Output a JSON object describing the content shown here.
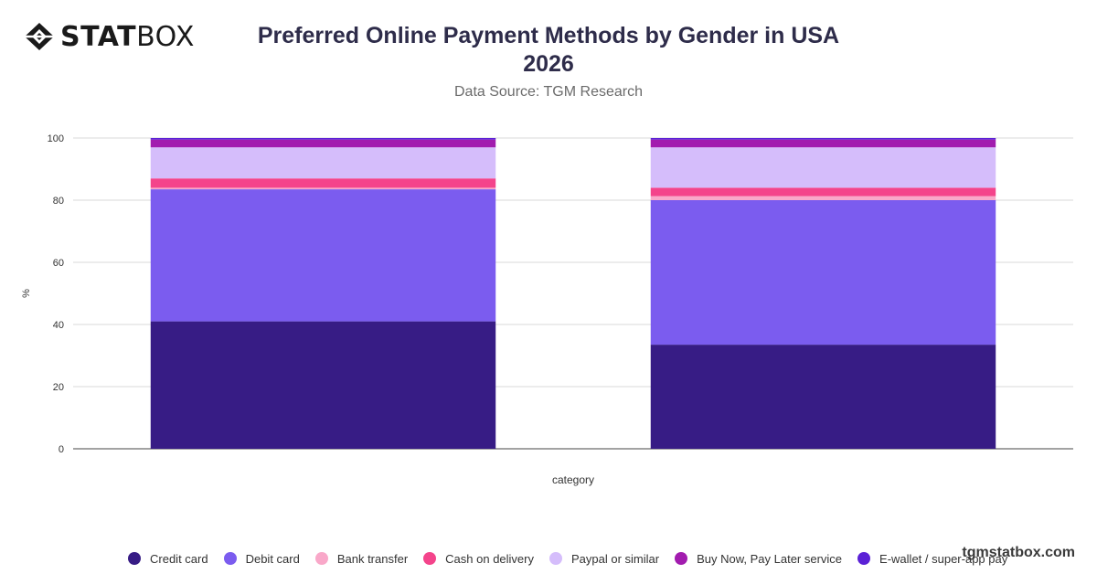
{
  "brand": {
    "logo_bold": "STAT",
    "logo_light": "BOX",
    "watermark": "tgmstatbox.com"
  },
  "header": {
    "title_line1": "Preferred Online Payment Methods by Gender in USA",
    "title_line2": "2026",
    "subtitle": "Data Source: TGM Research"
  },
  "chart_data": {
    "type": "bar",
    "stacked": true,
    "categories": [
      "",
      ""
    ],
    "xlabel": "category",
    "ylabel": "%",
    "ylim": [
      0,
      100
    ],
    "yticks": [
      0,
      20,
      40,
      60,
      80,
      100
    ],
    "grid": true,
    "legend_position": "bottom",
    "series": [
      {
        "name": "Credit card",
        "color": "#371c85",
        "values": [
          41,
          33.5
        ]
      },
      {
        "name": "Debit card",
        "color": "#7b5cef",
        "values": [
          42.5,
          46.5
        ]
      },
      {
        "name": "Bank transfer",
        "color": "#f9a8c9",
        "values": [
          0.5,
          1.3
        ]
      },
      {
        "name": "Cash on delivery",
        "color": "#f4448b",
        "values": [
          3,
          2.7
        ]
      },
      {
        "name": "Paypal or similar",
        "color": "#d5bdfb",
        "values": [
          10,
          13
        ]
      },
      {
        "name": "Buy Now, Pay Later service",
        "color": "#a21caf",
        "values": [
          2.5,
          2.5
        ]
      },
      {
        "name": "E-wallet / super-app pay",
        "color": "#5b21d6",
        "values": [
          0.5,
          0.5
        ]
      }
    ]
  }
}
